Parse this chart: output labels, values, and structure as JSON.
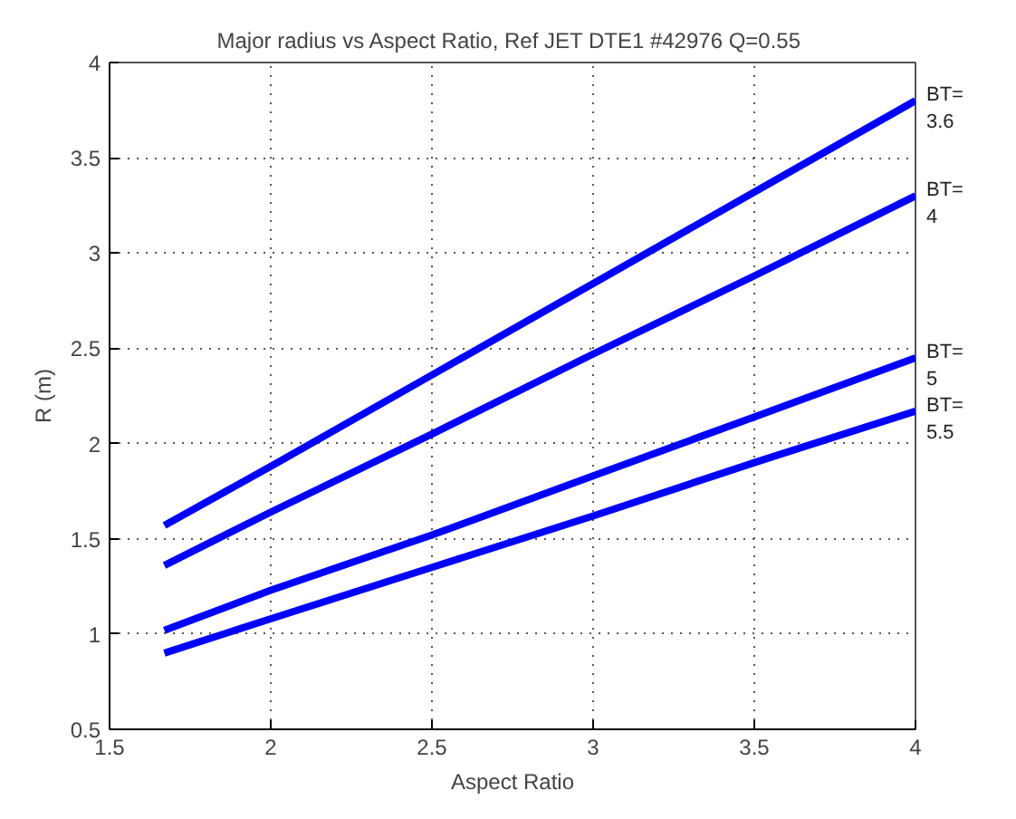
{
  "chart_data": {
    "type": "line",
    "title": "Major radius vs Aspect Ratio, Ref JET DTE1 #42976  Q=0.55",
    "xlabel": "Aspect Ratio",
    "ylabel": "R (m)",
    "x": [
      1.67,
      2,
      2.5,
      3,
      3.5,
      4
    ],
    "series": [
      {
        "name": "BT=\n3.6",
        "color": "#0000ff",
        "values": [
          1.57,
          1.88,
          2.36,
          2.84,
          3.32,
          3.8
        ]
      },
      {
        "name": "BT=\n4",
        "color": "#0000ff",
        "values": [
          1.36,
          1.64,
          2.05,
          2.47,
          2.88,
          3.3
        ]
      },
      {
        "name": "BT=\n5",
        "color": "#0000ff",
        "values": [
          1.02,
          1.23,
          1.52,
          1.83,
          2.14,
          2.45
        ]
      },
      {
        "name": "BT=\n5.5",
        "color": "#0000ff",
        "values": [
          0.9,
          1.08,
          1.35,
          1.62,
          1.9,
          2.17
        ]
      }
    ],
    "xlim": [
      1.5,
      4
    ],
    "ylim": [
      0.5,
      4
    ],
    "xticks": [
      1.5,
      2,
      2.5,
      3,
      3.5,
      4
    ],
    "yticks": [
      0.5,
      1,
      1.5,
      2,
      2.5,
      3,
      3.5,
      4
    ],
    "grid": true,
    "marker": "none",
    "line_style": "solid"
  }
}
